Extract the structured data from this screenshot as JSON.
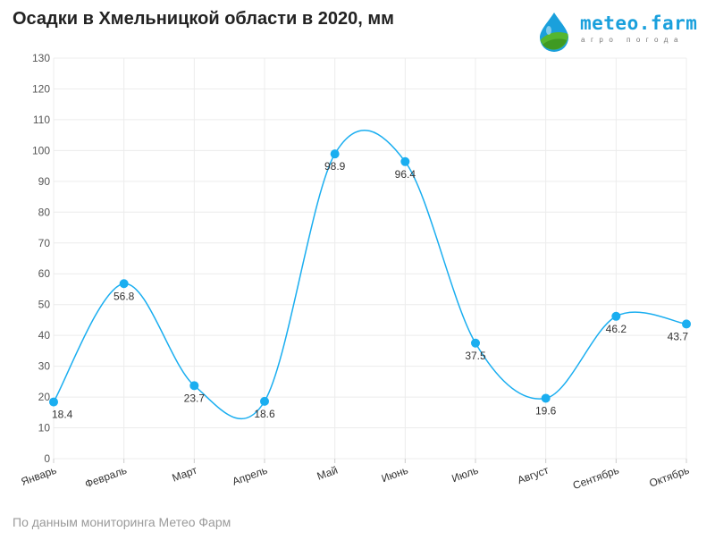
{
  "header": {
    "title": "Осадки в Хмельницкой области в 2020, мм"
  },
  "logo": {
    "icon": "meteo-farm-drop-icon",
    "text": "meteo.farm",
    "tagline": "агро погода"
  },
  "footer": {
    "source": "По данным мониторинга Метео Фарм"
  },
  "colors": {
    "line": "#1aaef0",
    "grid": "#ececec",
    "logo_blue": "#1aa0dc",
    "logo_green": "#55b630"
  },
  "chart_data": {
    "type": "line",
    "title": "Осадки в Хмельницкой области в 2020, мм",
    "xlabel": "",
    "ylabel": "",
    "ylim": [
      0,
      130
    ],
    "y_ticks": [
      "0",
      "10",
      "20",
      "30",
      "40",
      "50",
      "60",
      "70",
      "80",
      "90",
      "100",
      "110",
      "120",
      "130"
    ],
    "grid": true,
    "smooth": true,
    "categories": [
      "Январь",
      "Февраль",
      "Март",
      "Апрель",
      "Май",
      "Июнь",
      "Июль",
      "Август",
      "Сентябрь",
      "Октябрь"
    ],
    "series": [
      {
        "values": [
          18.4,
          56.8,
          23.7,
          18.6,
          98.9,
          96.4,
          37.5,
          19.6,
          46.2,
          43.7
        ],
        "labels": [
          "18.4",
          "56.8",
          "23.7",
          "18.6",
          "98.9",
          "96.4",
          "37.5",
          "19.6",
          "46.2",
          "43.7"
        ]
      }
    ]
  }
}
